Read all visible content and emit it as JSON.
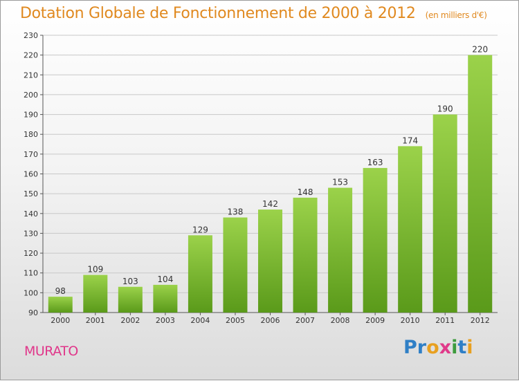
{
  "title": "Dotation Globale de Fonctionnement de 2000 à 2012",
  "subtitle": "(en milliers d'€)",
  "commune": "MURATO",
  "brand": {
    "letters": [
      {
        "ch": "P",
        "color": "#2f7fc6"
      },
      {
        "ch": "r",
        "color": "#2f7fc6"
      },
      {
        "ch": "o",
        "color": "#e8a020"
      },
      {
        "ch": "x",
        "color": "#e03a8a"
      },
      {
        "ch": "i",
        "color": "#3d9b3d"
      },
      {
        "ch": "t",
        "color": "#2f7fc6"
      },
      {
        "ch": "i",
        "color": "#e8a020"
      }
    ]
  },
  "colors": {
    "title": "#e0891f",
    "bar_light": "#9bd24a",
    "bar_dark": "#5a9a1a",
    "commune": "#e0368a"
  },
  "chart_data": {
    "type": "bar",
    "categories": [
      "2000",
      "2001",
      "2002",
      "2003",
      "2004",
      "2005",
      "2006",
      "2007",
      "2008",
      "2009",
      "2010",
      "2011",
      "2012"
    ],
    "values": [
      98,
      109,
      103,
      104,
      129,
      138,
      142,
      148,
      153,
      163,
      174,
      190,
      220
    ],
    "ylim": [
      90,
      230
    ],
    "yticks": [
      90,
      100,
      110,
      120,
      130,
      140,
      150,
      160,
      170,
      180,
      190,
      200,
      210,
      220,
      230
    ],
    "grid": true,
    "data_labels": true
  }
}
